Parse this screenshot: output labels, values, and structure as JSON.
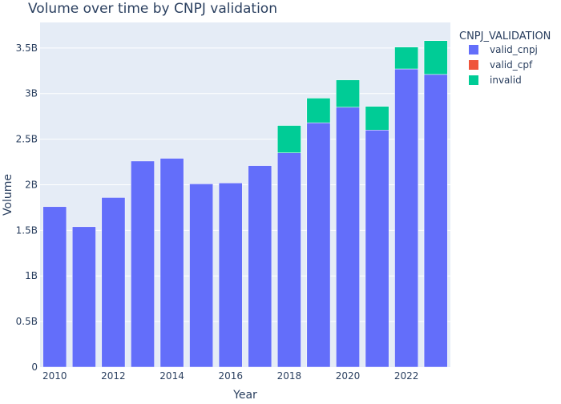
{
  "chart_data": {
    "type": "bar",
    "title": "Volume over time by CNPJ validation",
    "xlabel": "Year",
    "ylabel": "Volume",
    "x": [
      2010,
      2011,
      2012,
      2013,
      2014,
      2015,
      2016,
      2017,
      2018,
      2019,
      2020,
      2021,
      2022,
      2023
    ],
    "series": [
      {
        "name": "valid_cnpj",
        "color": "#636efa",
        "values": [
          1.76,
          1.54,
          1.86,
          2.26,
          2.29,
          2.01,
          2.02,
          2.21,
          2.35,
          2.68,
          2.85,
          2.6,
          3.27,
          3.21
        ]
      },
      {
        "name": "valid_cpf",
        "color": "#ef553b",
        "values": [
          0,
          0,
          0,
          0,
          0,
          0,
          0,
          0,
          0,
          0,
          0,
          0,
          0,
          0
        ]
      },
      {
        "name": "invalid",
        "color": "#00cc96",
        "values": [
          0,
          0,
          0,
          0,
          0,
          0,
          0,
          0,
          0.3,
          0.27,
          0.3,
          0.26,
          0.24,
          0.37
        ]
      }
    ],
    "value_unit": "billions",
    "ylim": [
      0,
      3.78
    ],
    "y_ticks": [
      0,
      0.5,
      1,
      1.5,
      2,
      2.5,
      3,
      3.5
    ],
    "y_tick_labels": [
      "0",
      "0.5B",
      "1B",
      "1.5B",
      "2B",
      "2.5B",
      "3B",
      "3.5B"
    ],
    "x_ticks": [
      2010,
      2012,
      2014,
      2016,
      2018,
      2020,
      2022
    ],
    "x_tick_labels": [
      "2010",
      "2012",
      "2014",
      "2016",
      "2018",
      "2020",
      "2022"
    ],
    "legend_title": "CNPJ_VALIDATION",
    "legend_position": "top-right",
    "stacked": true,
    "grid": true,
    "plot_background": "#e5ecf6"
  }
}
